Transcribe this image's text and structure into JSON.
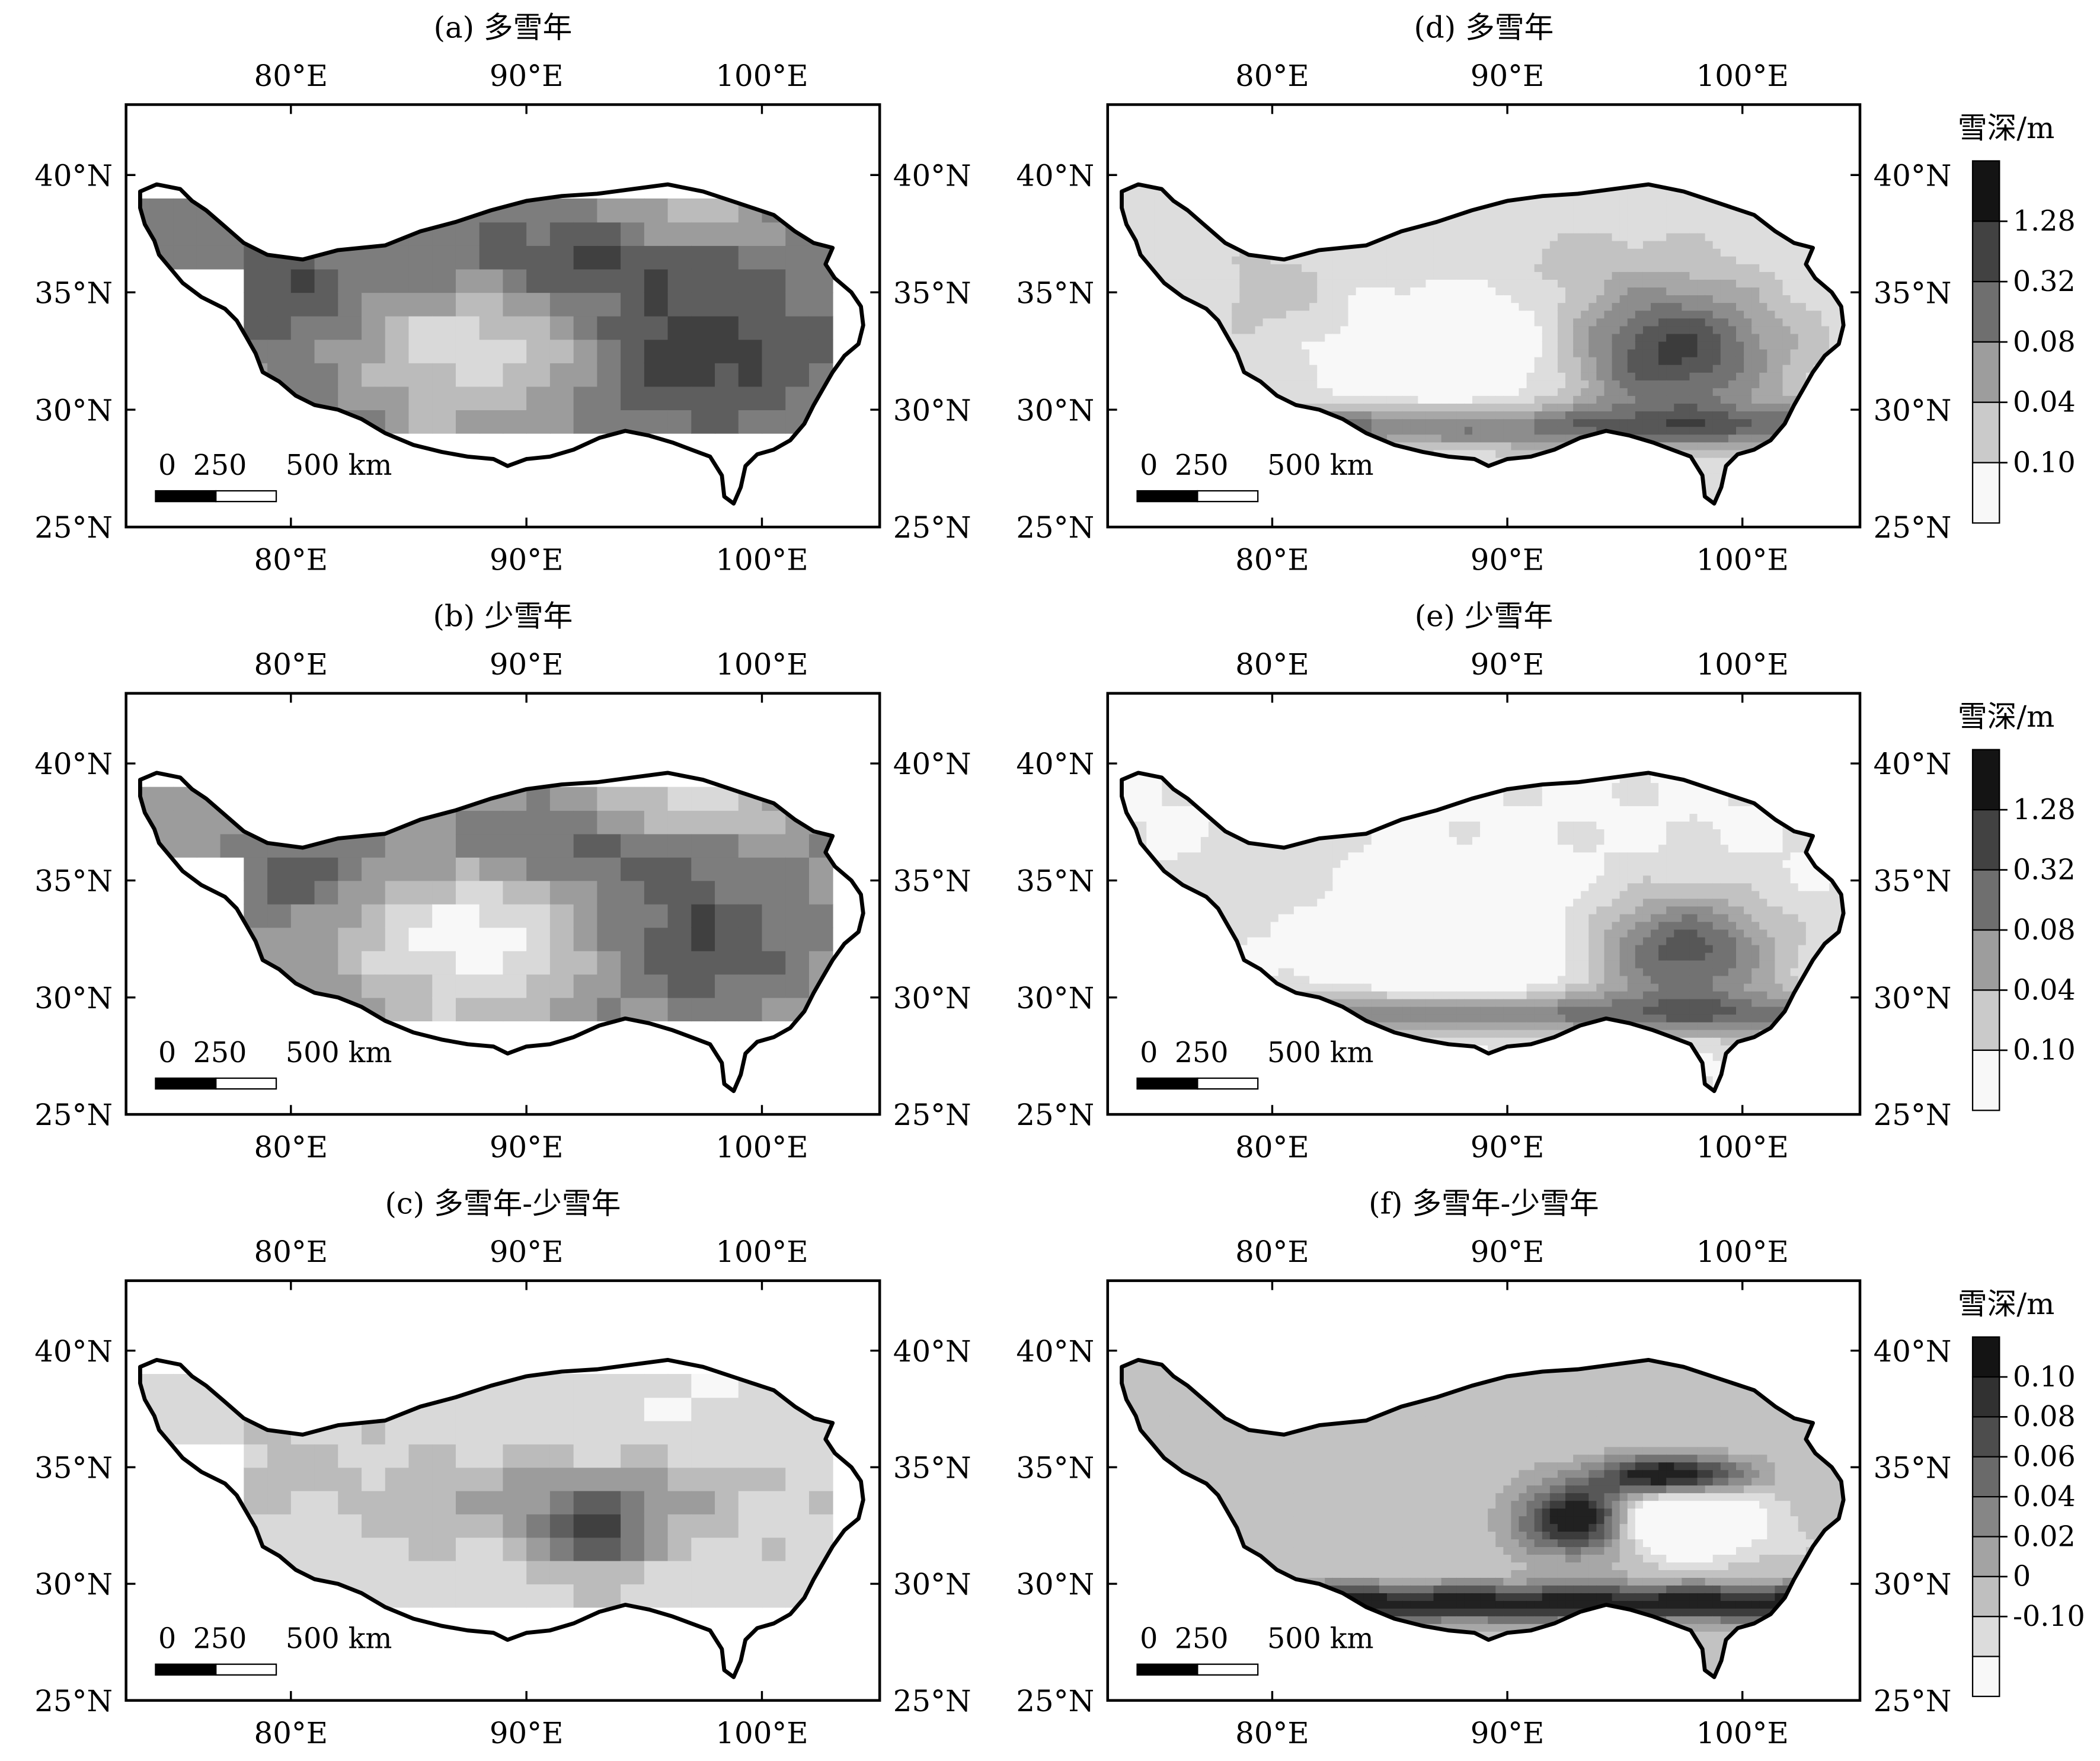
{
  "figure": {
    "lon_ticks": [
      "80°E",
      "90°E",
      "100°E"
    ],
    "lat_ticks": [
      "40°N",
      "35°N",
      "30°N",
      "25°N"
    ],
    "scale_bar": {
      "labels": [
        "0",
        "250",
        "500 km"
      ]
    },
    "colorbar_title": "雪深/m",
    "panels": [
      {
        "id": "a",
        "title": "(a) 多雪年",
        "style": "blocky",
        "intensity": 0.55
      },
      {
        "id": "d",
        "title": "(d) 多雪年",
        "style": "fine",
        "intensity": 0.55,
        "colorbar": [
          "1.28",
          "0.32",
          "0.08",
          "0.04",
          "0.10"
        ]
      },
      {
        "id": "b",
        "title": "(b) 少雪年",
        "style": "blocky",
        "intensity": 0.45
      },
      {
        "id": "e",
        "title": "(e) 少雪年",
        "style": "fine",
        "intensity": 0.45,
        "colorbar": [
          "1.28",
          "0.32",
          "0.08",
          "0.04",
          "0.10"
        ]
      },
      {
        "id": "c",
        "title": "(c) 多雪年-少雪年",
        "style": "blocky-diff",
        "intensity": 0.6
      },
      {
        "id": "f",
        "title": "(f) 多雪年-少雪年",
        "style": "fine-diff",
        "intensity": 0.6,
        "colorbar": [
          "0.10",
          "0.08",
          "0.06",
          "0.04",
          "0.02",
          "0",
          "-0.10"
        ]
      }
    ]
  }
}
